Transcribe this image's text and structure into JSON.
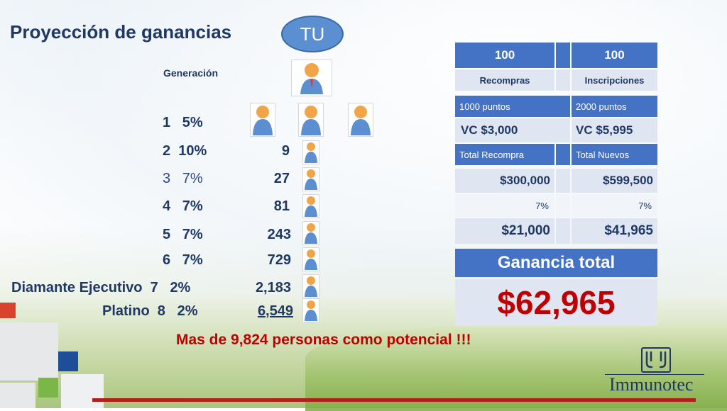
{
  "title": "Proyección de ganancias",
  "tu_label": "TU",
  "generacion_label": "Generación",
  "generations": [
    {
      "level": "1",
      "percent": "5%",
      "count": ""
    },
    {
      "level": "2",
      "percent": "10%",
      "count": "9"
    },
    {
      "level": "3",
      "percent": "7%",
      "count": "27"
    },
    {
      "level": "4",
      "percent": "7%",
      "count": "81"
    },
    {
      "level": "5",
      "percent": "7%",
      "count": "243"
    },
    {
      "level": "6",
      "percent": "7%",
      "count": "729"
    },
    {
      "rank": "Diamante Ejecutivo",
      "level": "7",
      "percent": "2%",
      "count": "2,183"
    },
    {
      "rank": "Platino",
      "level": "8",
      "percent": "2%",
      "count": "6,549"
    }
  ],
  "table": {
    "col1_head": "100",
    "col2_head": "100",
    "col1_sub": "Recompras",
    "col2_sub": "Inscripciones",
    "col1_points": "1000 puntos",
    "col2_points": "2000 puntos",
    "col1_vc": "VC $3,000",
    "col2_vc": "VC $5,995",
    "col1_total_label": "Total Recompra",
    "col2_total_label": "Total Nuevos",
    "col1_total": "$300,000",
    "col2_total": "$599,500",
    "col1_pct": "7%",
    "col2_pct": "7%",
    "col1_earn": "$21,000",
    "col2_earn": "$41,965"
  },
  "ganancia_label": "Ganancia total",
  "ganancia_total": "$62,965",
  "potencial": "Mas de 9,824 personas como potencial !!!",
  "logo_text": "Immunotec",
  "colors": {
    "title": "#1f3864",
    "accent_blue": "#4472c4",
    "highlight_red": "#c00000"
  }
}
